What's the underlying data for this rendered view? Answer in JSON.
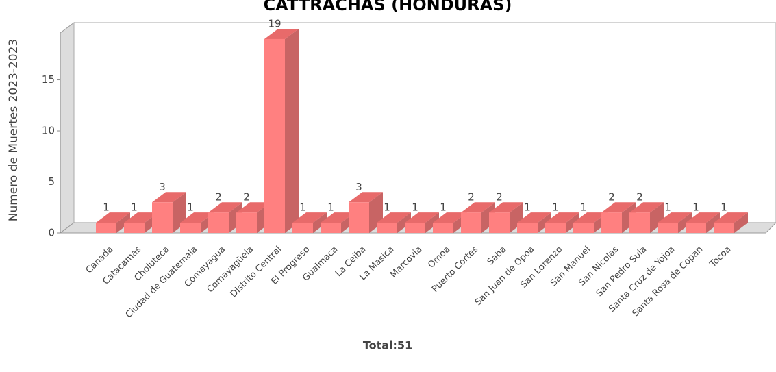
{
  "chart_data": {
    "type": "bar3d",
    "title": "CATTRACHAS (HONDURAS)",
    "y_label": "Numero de Muertes 2023-2023",
    "footer": "Total:51",
    "categories": [
      "Canada",
      "Catacamas",
      "Choluteca",
      "Ciudad de Guatemala",
      "Comayagua",
      "Comayagüela",
      "Distrito Central",
      "El Progreso",
      "Guaimaca",
      "La Ceiba",
      "La Masica",
      "Marcovia",
      "Omoa",
      "Puerto Cortes",
      "Saba",
      "San Juan de Opoa",
      "San Lorenzo",
      "San Manuel",
      "San Nicolas",
      "San Pedro Sula",
      "Santa Cruz de Yojoa",
      "Santa Rosa de Copan",
      "Tocoa"
    ],
    "values": [
      1,
      1,
      3,
      1,
      2,
      2,
      19,
      1,
      1,
      3,
      1,
      1,
      1,
      2,
      2,
      1,
      1,
      1,
      2,
      2,
      1,
      1,
      1
    ],
    "color": "#ff8080",
    "ylim": [
      0,
      19.6
    ],
    "yticks": [
      0,
      5,
      10,
      15
    ]
  }
}
